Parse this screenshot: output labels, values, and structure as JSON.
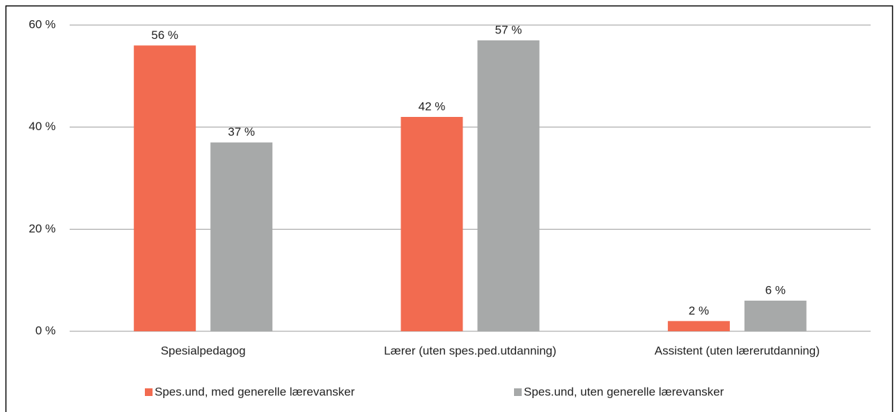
{
  "chart_data": {
    "type": "bar",
    "categories": [
      "Spesialpedagog",
      "Lærer (uten spes.ped.utdanning)",
      "Assistent (uten lærerutdanning)"
    ],
    "series": [
      {
        "name": "Spes.und, med generelle lærevansker",
        "color": "#f26b50",
        "values": [
          56,
          42,
          2
        ],
        "value_labels": [
          "56 %",
          "42 %",
          "2 %"
        ]
      },
      {
        "name": "Spes.und, uten generelle lærevansker",
        "color": "#a7a9a9",
        "values": [
          37,
          57,
          6
        ],
        "value_labels": [
          "37 %",
          "57 %",
          "6 %"
        ]
      }
    ],
    "ylim": [
      0,
      60
    ],
    "yticks": [
      {
        "value": 0,
        "label": "0 %"
      },
      {
        "value": 20,
        "label": "20 %"
      },
      {
        "value": 40,
        "label": "40 %"
      },
      {
        "value": 60,
        "label": "60 %"
      }
    ],
    "grid": true,
    "legend": "bottom"
  }
}
